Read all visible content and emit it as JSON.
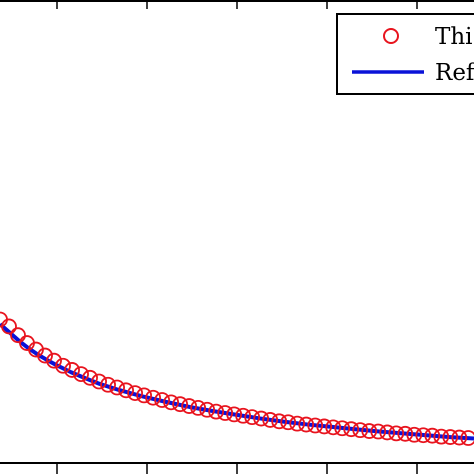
{
  "colors": {
    "background": "#ffffff",
    "axes": "#000000",
    "this_work_markers": "#e8141e",
    "reference_line": "#0a12d8"
  },
  "chart_data": {
    "type": "line",
    "title": "",
    "xlabel": "",
    "ylabel": "",
    "grid": false,
    "legend_position": "top-right",
    "x_tick_labels_visible": false,
    "y_tick_labels_visible": false,
    "xlim": [
      0,
      100
    ],
    "ylim": [
      0,
      100
    ],
    "series": [
      {
        "name": "Thi",
        "style": "circle markers, no line",
        "color": "#e8141e",
        "x": [
          0,
          1.9,
          3.8,
          5.7,
          7.6,
          9.5,
          11.4,
          13.3,
          15.2,
          17.1,
          19,
          20.9,
          22.8,
          24.7,
          26.6,
          28.5,
          30.4,
          32.3,
          34.2,
          36.1,
          38,
          39.9,
          41.8,
          43.7,
          45.6,
          47.5,
          49.4,
          51.3,
          53.2,
          55.1,
          57,
          58.9,
          60.8,
          62.7,
          64.6,
          66.5,
          68.4,
          70.3,
          72.2,
          74.1,
          76,
          77.9,
          79.8,
          81.7,
          83.6,
          85.5,
          87.4,
          89.3,
          91.2,
          93.1,
          95,
          96.9,
          98.8
        ],
        "y": [
          31,
          29.5,
          27.6,
          25.9,
          24.5,
          23.2,
          22.1,
          21,
          20.1,
          19.2,
          18.4,
          17.6,
          16.9,
          16.3,
          15.7,
          15.1,
          14.6,
          14.1,
          13.6,
          13.1,
          12.7,
          12.3,
          11.9,
          11.5,
          11.1,
          10.8,
          10.5,
          10.2,
          9.9,
          9.6,
          9.3,
          9,
          8.8,
          8.5,
          8.3,
          8.1,
          7.9,
          7.7,
          7.5,
          7.3,
          7.1,
          6.9,
          6.8,
          6.6,
          6.4,
          6.3,
          6.1,
          6,
          5.9,
          5.7,
          5.6,
          5.5,
          5.4
        ]
      },
      {
        "name": "Ref",
        "style": "solid line",
        "color": "#0a12d8",
        "x": [
          0,
          2,
          4,
          6,
          8,
          10,
          12,
          15,
          18,
          21,
          25,
          30,
          35,
          40,
          45,
          50,
          55,
          60,
          65,
          70,
          75,
          80,
          85,
          90,
          95,
          100
        ],
        "y": [
          30,
          28.2,
          26.4,
          24.8,
          23.4,
          22.2,
          21.1,
          19.6,
          18.3,
          17.1,
          15.8,
          14.4,
          13.2,
          12.1,
          11.2,
          10.4,
          9.6,
          8.9,
          8.3,
          7.8,
          7.3,
          6.8,
          6.4,
          6,
          5.6,
          5.3
        ]
      }
    ]
  }
}
